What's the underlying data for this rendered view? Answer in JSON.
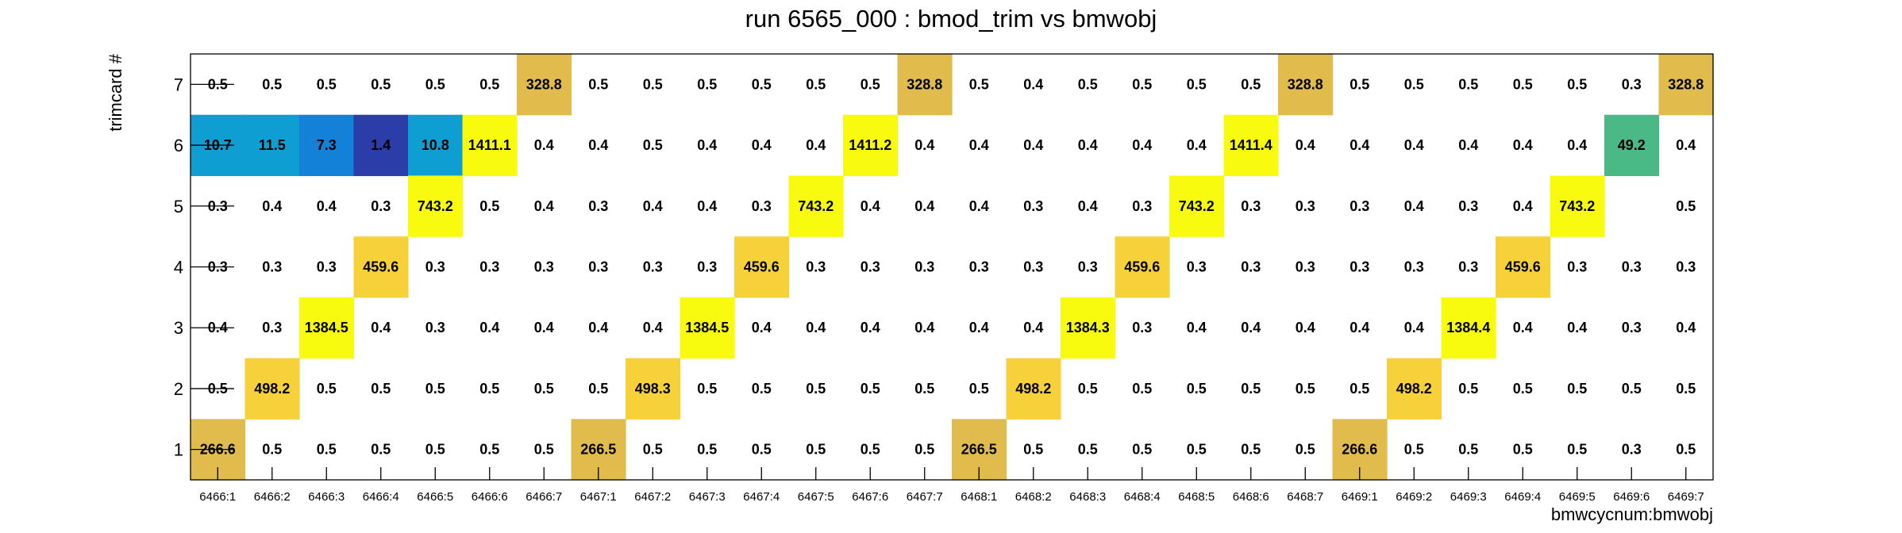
{
  "chart_data": {
    "type": "heatmap",
    "title": "run 6565_000 : bmod_trim vs bmwobj",
    "xlabel": "bmwcycnum:bmwobj",
    "ylabel": "trimcard #",
    "x_categories": [
      "6466:1",
      "6466:2",
      "6466:3",
      "6466:4",
      "6466:5",
      "6466:6",
      "6466:7",
      "6467:1",
      "6467:2",
      "6467:3",
      "6467:4",
      "6467:5",
      "6467:6",
      "6467:7",
      "6468:1",
      "6468:2",
      "6468:3",
      "6468:4",
      "6468:5",
      "6468:6",
      "6468:7",
      "6469:1",
      "6469:2",
      "6469:3",
      "6469:4",
      "6469:5",
      "6469:6",
      "6469:7"
    ],
    "y_categories": [
      "1",
      "2",
      "3",
      "4",
      "5",
      "6",
      "7"
    ],
    "rows": [
      {
        "y": "7",
        "values": [
          "0.5",
          "0.5",
          "0.5",
          "0.5",
          "0.5",
          "0.5",
          "328.8",
          "0.5",
          "0.5",
          "0.5",
          "0.5",
          "0.5",
          "0.5",
          "328.8",
          "0.5",
          "0.4",
          "0.5",
          "0.5",
          "0.5",
          "0.5",
          "328.8",
          "0.5",
          "0.5",
          "0.5",
          "0.5",
          "0.5",
          "0.3",
          "328.8"
        ]
      },
      {
        "y": "6",
        "values": [
          "10.7",
          "11.5",
          "7.3",
          "1.4",
          "10.8",
          "1411.1",
          "0.4",
          "0.4",
          "0.5",
          "0.4",
          "0.4",
          "0.4",
          "1411.2",
          "0.4",
          "0.4",
          "0.4",
          "0.4",
          "0.4",
          "0.4",
          "1411.4",
          "0.4",
          "0.4",
          "0.4",
          "0.4",
          "0.4",
          "0.4",
          "49.2",
          "0.4"
        ]
      },
      {
        "y": "5",
        "values": [
          "0.3",
          "0.4",
          "0.4",
          "0.3",
          "743.2",
          "0.5",
          "0.4",
          "0.3",
          "0.4",
          "0.4",
          "0.3",
          "743.2",
          "0.4",
          "0.4",
          "0.4",
          "0.3",
          "0.4",
          "0.3",
          "743.2",
          "0.3",
          "0.3",
          "0.3",
          "0.4",
          "0.3",
          "0.4",
          "743.2",
          "",
          "0.5"
        ]
      },
      {
        "y": "4",
        "values": [
          "0.3",
          "0.3",
          "0.3",
          "459.6",
          "0.3",
          "0.3",
          "0.3",
          "0.3",
          "0.3",
          "0.3",
          "459.6",
          "0.3",
          "0.3",
          "0.3",
          "0.3",
          "0.3",
          "0.3",
          "459.6",
          "0.3",
          "0.3",
          "0.3",
          "0.3",
          "0.3",
          "0.3",
          "459.6",
          "0.3",
          "0.3",
          "0.3"
        ]
      },
      {
        "y": "3",
        "values": [
          "0.4",
          "0.3",
          "1384.5",
          "0.4",
          "0.3",
          "0.4",
          "0.4",
          "0.4",
          "0.4",
          "1384.5",
          "0.4",
          "0.4",
          "0.4",
          "0.4",
          "0.4",
          "0.4",
          "1384.3",
          "0.3",
          "0.4",
          "0.4",
          "0.4",
          "0.4",
          "0.4",
          "1384.4",
          "0.4",
          "0.4",
          "0.3",
          "0.4"
        ]
      },
      {
        "y": "2",
        "values": [
          "0.5",
          "498.2",
          "0.5",
          "0.5",
          "0.5",
          "0.5",
          "0.5",
          "0.5",
          "498.3",
          "0.5",
          "0.5",
          "0.5",
          "0.5",
          "0.5",
          "0.5",
          "498.2",
          "0.5",
          "0.5",
          "0.5",
          "0.5",
          "0.5",
          "0.5",
          "498.2",
          "0.5",
          "0.5",
          "0.5",
          "0.5",
          "0.5"
        ]
      },
      {
        "y": "1",
        "values": [
          "266.6",
          "0.5",
          "0.5",
          "0.5",
          "0.5",
          "0.5",
          "0.5",
          "266.5",
          "0.5",
          "0.5",
          "0.5",
          "0.5",
          "0.5",
          "0.5",
          "266.5",
          "0.5",
          "0.5",
          "0.5",
          "0.5",
          "0.5",
          "0.5",
          "266.6",
          "0.5",
          "0.5",
          "0.5",
          "0.5",
          "0.3",
          "0.5"
        ]
      }
    ],
    "colormap": "kBird",
    "colors": {
      "frame": "#000000",
      "highest": "#f9fb0e",
      "high": "#f7d13a",
      "mid_high": "#e1bb4b",
      "mid": "#4ab985",
      "low_mid": "#0f9ed2",
      "low": "#1381d7",
      "lowest": "#2a3da8"
    }
  }
}
